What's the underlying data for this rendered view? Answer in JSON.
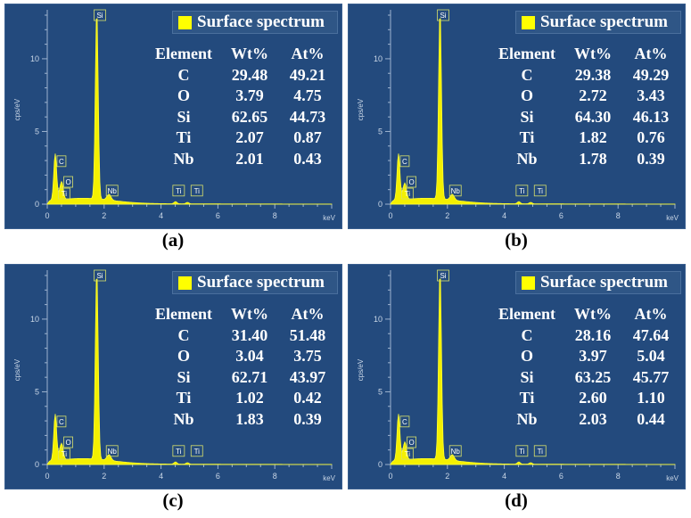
{
  "chart_data": [
    {
      "type": "line",
      "label": "(a)",
      "legend": "Surface spectrum",
      "xlabel": "keV",
      "ylabel": "cps/eV",
      "xlim": [
        0,
        10
      ],
      "ylim": [
        0,
        13
      ],
      "x_ticks": [
        "0",
        "2",
        "4",
        "6",
        "8"
      ],
      "y_ticks": [
        "0",
        "5",
        "10"
      ],
      "peaks": [
        {
          "label": "C",
          "x": 0.28,
          "y": 3.2
        },
        {
          "label": "O",
          "x": 0.52,
          "y": 1.0
        },
        {
          "label": "Ti",
          "x": 0.45,
          "y": 0.5
        },
        {
          "label": "Si",
          "x": 1.74,
          "y": 13.0
        },
        {
          "label": "Nb",
          "x": 2.17,
          "y": 0.4
        },
        {
          "label": "Ti",
          "x": 4.51,
          "y": 0.15
        },
        {
          "label": "Ti",
          "x": 4.93,
          "y": 0.1
        }
      ],
      "table": {
        "headers": [
          "Element",
          "Wt%",
          "At%"
        ],
        "rows": [
          [
            "C",
            "29.48",
            "49.21"
          ],
          [
            "O",
            "3.79",
            "4.75"
          ],
          [
            "Si",
            "62.65",
            "44.73"
          ],
          [
            "Ti",
            "2.07",
            "0.87"
          ],
          [
            "Nb",
            "2.01",
            "0.43"
          ]
        ]
      }
    },
    {
      "type": "line",
      "label": "(b)",
      "legend": "Surface spectrum",
      "xlabel": "keV",
      "ylabel": "cps/eV",
      "xlim": [
        0,
        10
      ],
      "ylim": [
        0,
        13
      ],
      "x_ticks": [
        "0",
        "2",
        "4",
        "6",
        "8"
      ],
      "y_ticks": [
        "0",
        "5",
        "10"
      ],
      "peaks": [
        {
          "label": "C",
          "x": 0.28,
          "y": 3.2
        },
        {
          "label": "O",
          "x": 0.52,
          "y": 0.9
        },
        {
          "label": "Ti",
          "x": 0.45,
          "y": 0.5
        },
        {
          "label": "Si",
          "x": 1.74,
          "y": 13.0
        },
        {
          "label": "Nb",
          "x": 2.17,
          "y": 0.4
        },
        {
          "label": "Ti",
          "x": 4.51,
          "y": 0.15
        },
        {
          "label": "Ti",
          "x": 4.93,
          "y": 0.1
        }
      ],
      "table": {
        "headers": [
          "Element",
          "Wt%",
          "At%"
        ],
        "rows": [
          [
            "C",
            "29.38",
            "49.29"
          ],
          [
            "O",
            "2.72",
            "3.43"
          ],
          [
            "Si",
            "64.30",
            "46.13"
          ],
          [
            "Ti",
            "1.82",
            "0.76"
          ],
          [
            "Nb",
            "1.78",
            "0.39"
          ]
        ]
      }
    },
    {
      "type": "line",
      "label": "(c)",
      "legend": "Surface spectrum",
      "xlabel": "keV",
      "ylabel": "cps/eV",
      "xlim": [
        0,
        10
      ],
      "ylim": [
        0,
        13
      ],
      "x_ticks": [
        "0",
        "2",
        "4",
        "6",
        "8"
      ],
      "y_ticks": [
        "0",
        "5",
        "10"
      ],
      "peaks": [
        {
          "label": "C",
          "x": 0.28,
          "y": 3.2
        },
        {
          "label": "O",
          "x": 0.52,
          "y": 0.9
        },
        {
          "label": "Ti",
          "x": 0.45,
          "y": 0.5
        },
        {
          "label": "Si",
          "x": 1.74,
          "y": 13.0
        },
        {
          "label": "Nb",
          "x": 2.17,
          "y": 0.4
        },
        {
          "label": "Ti",
          "x": 4.51,
          "y": 0.15
        },
        {
          "label": "Ti",
          "x": 4.93,
          "y": 0.1
        }
      ],
      "table": {
        "headers": [
          "Element",
          "Wt%",
          "At%"
        ],
        "rows": [
          [
            "C",
            "31.40",
            "51.48"
          ],
          [
            "O",
            "3.04",
            "3.75"
          ],
          [
            "Si",
            "62.71",
            "43.97"
          ],
          [
            "Ti",
            "1.02",
            "0.42"
          ],
          [
            "Nb",
            "1.83",
            "0.39"
          ]
        ]
      }
    },
    {
      "type": "line",
      "label": "(d)",
      "legend": "Surface spectrum",
      "xlabel": "keV",
      "ylabel": "cps/eV",
      "xlim": [
        0,
        10
      ],
      "ylim": [
        0,
        13
      ],
      "x_ticks": [
        "0",
        "2",
        "4",
        "6",
        "8"
      ],
      "y_ticks": [
        "0",
        "5",
        "10"
      ],
      "peaks": [
        {
          "label": "C",
          "x": 0.28,
          "y": 3.2
        },
        {
          "label": "O",
          "x": 0.52,
          "y": 1.0
        },
        {
          "label": "Ti",
          "x": 0.45,
          "y": 0.5
        },
        {
          "label": "Si",
          "x": 1.74,
          "y": 13.0
        },
        {
          "label": "Nb",
          "x": 2.17,
          "y": 0.4
        },
        {
          "label": "Ti",
          "x": 4.51,
          "y": 0.15
        },
        {
          "label": "Ti",
          "x": 4.93,
          "y": 0.1
        }
      ],
      "table": {
        "headers": [
          "Element",
          "Wt%",
          "At%"
        ],
        "rows": [
          [
            "C",
            "28.16",
            "47.64"
          ],
          [
            "O",
            "3.97",
            "5.04"
          ],
          [
            "Si",
            "63.25",
            "45.77"
          ],
          [
            "Ti",
            "2.60",
            "1.10"
          ],
          [
            "Nb",
            "2.03",
            "0.44"
          ]
        ]
      }
    }
  ]
}
